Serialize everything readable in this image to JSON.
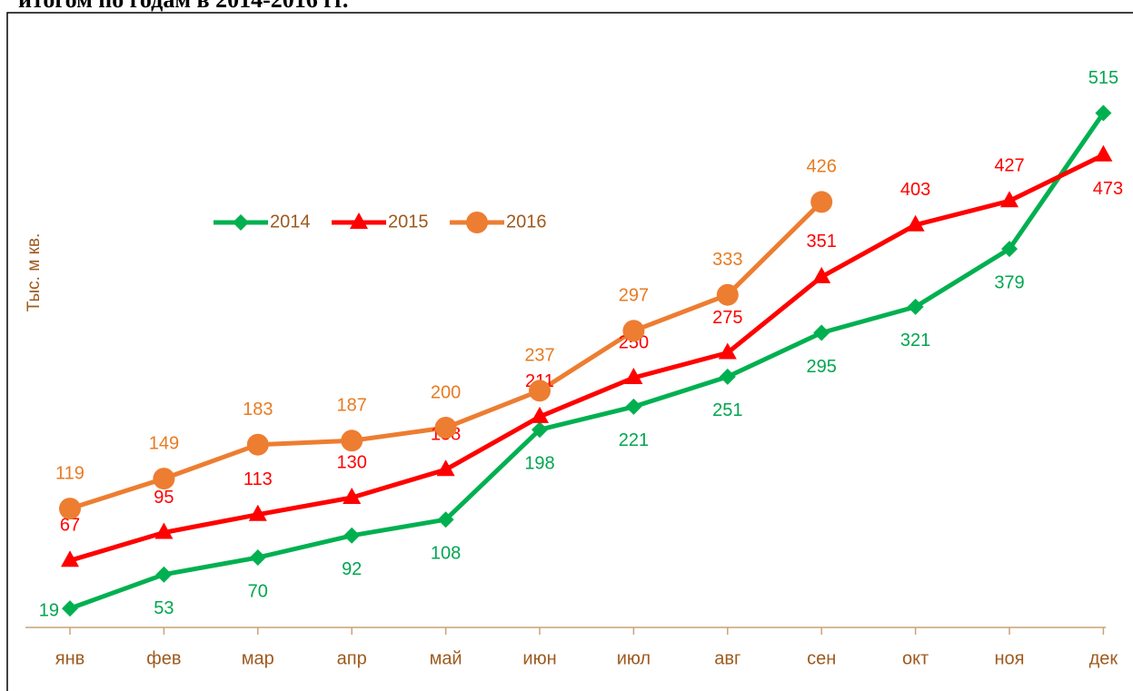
{
  "chart_data": {
    "type": "line",
    "title": "итогом по годам в 2014-2016 гг.",
    "y_label": "Тыс. м кв.",
    "categories": [
      "янв",
      "фев",
      "мар",
      "апр",
      "май",
      "июн",
      "июл",
      "авг",
      "сен",
      "окт",
      "ноя",
      "дек"
    ],
    "series": [
      {
        "name": "2014",
        "color": "#00b050",
        "marker": "diamond",
        "values": [
          19,
          53,
          70,
          92,
          108,
          198,
          221,
          251,
          295,
          321,
          379,
          515
        ]
      },
      {
        "name": "2015",
        "color": "#ff0000",
        "marker": "triangle",
        "values": [
          67,
          95,
          113,
          130,
          158,
          211,
          250,
          275,
          351,
          403,
          427,
          473
        ]
      },
      {
        "name": "2016",
        "color": "#ed7d31",
        "marker": "circle",
        "values": [
          119,
          149,
          183,
          187,
          200,
          237,
          297,
          333,
          426,
          null,
          null,
          null
        ]
      }
    ],
    "ylim": [
      0,
      600
    ],
    "grid": false,
    "legend": "upper left"
  }
}
